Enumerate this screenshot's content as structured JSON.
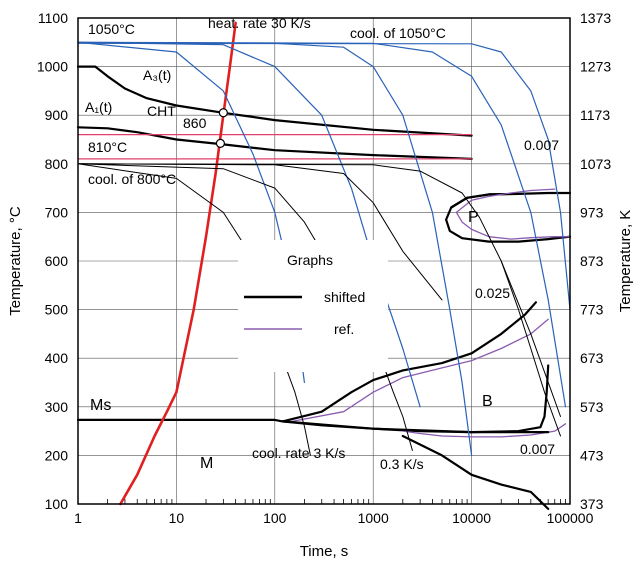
{
  "chart_data": {
    "type": "line",
    "xlabel": "Time, s",
    "ylabel": "Temperature, °C",
    "ylabel_right": "Temperature, K",
    "x_scale": "log",
    "xlim": [
      1,
      100000
    ],
    "ylim": [
      100,
      1100
    ],
    "x_ticks": [
      "1",
      "10",
      "100",
      "1000",
      "10000",
      "100000"
    ],
    "y_ticks": [
      "100",
      "200",
      "300",
      "400",
      "500",
      "600",
      "700",
      "800",
      "900",
      "1000",
      "1100"
    ],
    "y_ticks_right": [
      "373",
      "473",
      "573",
      "673",
      "773",
      "873",
      "973",
      "1073",
      "1173",
      "1273",
      "1373"
    ],
    "grid": true,
    "legend": {
      "title": "Graphs",
      "placement": "center",
      "entries": [
        {
          "label": "shifted",
          "color": "#000000"
        },
        {
          "label": "ref.",
          "color": "#8a5bb0"
        }
      ]
    },
    "colors": {
      "shifted": "#000000",
      "ref": "#8a5bb0",
      "cooling": "#2a62b8",
      "heating": "#e02020",
      "cht": "#e0406a",
      "thin": "#000000"
    },
    "annotations": {
      "cool_1050": "1050°C",
      "cool_of_1050": "cool. of 1050°C",
      "heat_rate": "heat. rate 30 K/s",
      "a3": "A₃(t)",
      "a1": "A₁(t)",
      "cht": "CHT",
      "temp_860": "860",
      "temp_810": "810°C",
      "cool_of_800": "cool. of 800°C",
      "rate_0007_top": "0.007",
      "rate_0025": "0.025",
      "rate_0007_bottom": "0.007",
      "phase_P": "P",
      "phase_B": "B",
      "phase_M": "M",
      "ms": "Ms",
      "cool_rate_3": "cool. rate 3 K/s",
      "rate_03": "0.3 K/s"
    },
    "series": [
      {
        "name": "shifted",
        "role": "A3(t)",
        "style": "shifted",
        "x": [
          1,
          1.5,
          2,
          3,
          5,
          10,
          30,
          100,
          1000,
          10000
        ],
        "y": [
          1000,
          1000,
          980,
          955,
          935,
          920,
          905,
          890,
          870,
          858
        ]
      },
      {
        "name": "shifted",
        "role": "A1(t)",
        "style": "shifted",
        "x": [
          1,
          2,
          4,
          10,
          30,
          100,
          1000,
          10000
        ],
        "y": [
          875,
          873,
          865,
          850,
          840,
          828,
          818,
          810
        ]
      },
      {
        "name": "shifted",
        "role": "pearlite",
        "style": "shifted",
        "x": [
          30000,
          15000,
          9000,
          6200,
          5500,
          6000,
          8000,
          15000,
          30000,
          60000,
          100000
        ],
        "y": [
          738,
          737,
          730,
          710,
          685,
          662,
          647,
          640,
          640,
          645,
          650
        ]
      },
      {
        "name": "shifted",
        "role": "pearlite-nose",
        "style": "shifted",
        "x": [
          9000,
          6200
        ],
        "y": [
          730,
          710
        ]
      },
      {
        "name": "shifted",
        "role": "pearlite-top",
        "style": "shifted",
        "x": [
          9000,
          15000,
          30000,
          60000,
          100000
        ],
        "y": [
          730,
          737,
          738,
          740,
          740
        ]
      },
      {
        "name": "shifted",
        "role": "bainite-start",
        "style": "shifted",
        "x": [
          120,
          300,
          600,
          1000,
          2000,
          5000,
          10000,
          20000,
          35000,
          45000
        ],
        "y": [
          270,
          290,
          330,
          355,
          375,
          390,
          410,
          450,
          490,
          515
        ]
      },
      {
        "name": "shifted",
        "role": "bainite-end",
        "style": "shifted",
        "x": [
          120,
          300,
          1000,
          3000,
          10000,
          30000,
          50000,
          55000,
          58000,
          60000
        ],
        "y": [
          270,
          262,
          255,
          250,
          248,
          250,
          258,
          280,
          330,
          385
        ]
      },
      {
        "name": "ref.",
        "role": "pearlite-ref",
        "style": "ref",
        "x": [
          7000,
          8000,
          10000,
          15000,
          25000,
          40000,
          70000,
          100000
        ],
        "y": [
          700,
          680,
          665,
          650,
          645,
          648,
          650,
          650
        ]
      },
      {
        "name": "ref.",
        "role": "pearlite-ref-top",
        "style": "ref",
        "x": [
          7000,
          10000,
          15000,
          25000,
          40000,
          70000
        ],
        "y": [
          700,
          725,
          733,
          740,
          745,
          748
        ]
      },
      {
        "name": "ref.",
        "role": "bainite-ref-start",
        "style": "ref",
        "x": [
          150,
          500,
          1000,
          2000,
          5000,
          10000,
          20000,
          40000,
          60000
        ],
        "y": [
          270,
          290,
          330,
          360,
          380,
          395,
          420,
          450,
          480
        ]
      },
      {
        "name": "ref.",
        "role": "bainite-ref-end",
        "style": "ref",
        "x": [
          2000,
          3000,
          5000,
          10000,
          20000,
          40000,
          70000,
          90000
        ],
        "y": [
          250,
          245,
          240,
          238,
          238,
          242,
          250,
          265
        ]
      },
      {
        "name": "Ms",
        "style": "shifted",
        "x": [
          1,
          10,
          100,
          120,
          1000,
          10000,
          60000
        ],
        "y": [
          273,
          273,
          273,
          270,
          255,
          248,
          248
        ]
      },
      {
        "name": "cht-860",
        "style": "cht",
        "x": [
          1,
          10000
        ],
        "y": [
          860,
          860
        ]
      },
      {
        "name": "cht-810",
        "style": "cht",
        "x": [
          1,
          10000
        ],
        "y": [
          810,
          810
        ]
      },
      {
        "name": "heat. rate 30 K/s",
        "style": "heating",
        "x": [
          2.7,
          4,
          6,
          8,
          10,
          15,
          20,
          25,
          30,
          35,
          40
        ],
        "y": [
          100,
          160,
          240,
          290,
          330,
          500,
          650,
          780,
          900,
          1000,
          1090
        ]
      },
      {
        "name": "cool-1050-a",
        "style": "cooling",
        "x": [
          1,
          10,
          30,
          60,
          100,
          150,
          200
        ],
        "y": [
          1050,
          1030,
          950,
          820,
          700,
          550,
          350
        ]
      },
      {
        "name": "cool-1050-b",
        "style": "cooling",
        "x": [
          1,
          30,
          100,
          300,
          600,
          1000,
          2000,
          3000
        ],
        "y": [
          1050,
          1045,
          1000,
          900,
          750,
          600,
          420,
          300
        ]
      },
      {
        "name": "cool-1050-c",
        "style": "cooling",
        "x": [
          1,
          100,
          500,
          1000,
          2000,
          4000,
          6000,
          8000,
          10000
        ],
        "y": [
          1050,
          1048,
          1040,
          1000,
          900,
          700,
          500,
          350,
          200
        ]
      },
      {
        "name": "cool-1050-d",
        "style": "cooling",
        "x": [
          1,
          1000,
          4000,
          10000,
          20000,
          40000,
          60000,
          90000
        ],
        "y": [
          1050,
          1048,
          1030,
          980,
          880,
          700,
          520,
          300
        ]
      },
      {
        "name": "cool-1050-e",
        "style": "cooling",
        "x": [
          1,
          10000,
          20000,
          40000,
          60000,
          80000,
          100000
        ],
        "y": [
          1048,
          1047,
          1030,
          950,
          850,
          700,
          500
        ]
      },
      {
        "name": "cool-800-a",
        "style": "thin",
        "x": [
          1,
          10,
          30,
          50,
          70,
          100
        ],
        "y": [
          800,
          770,
          700,
          630,
          580,
          520
        ]
      },
      {
        "name": "cool-800-b",
        "style": "thin",
        "x": [
          1,
          30,
          100,
          200,
          300,
          500
        ],
        "y": [
          800,
          790,
          750,
          680,
          620,
          560
        ]
      },
      {
        "name": "cool-800-c",
        "style": "thin",
        "x": [
          1,
          100,
          500,
          1000,
          2000,
          5000
        ],
        "y": [
          800,
          798,
          780,
          720,
          620,
          520
        ]
      },
      {
        "name": "cool-800-d",
        "style": "thin",
        "x": [
          1,
          1000,
          3000,
          8000,
          12000,
          20000,
          40000,
          80000
        ],
        "y": [
          800,
          798,
          785,
          740,
          690,
          600,
          450,
          280
        ]
      },
      {
        "name": "cool-rate-3",
        "style": "thin",
        "x": [
          100,
          130,
          160,
          200,
          230
        ],
        "y": [
          430,
          380,
          330,
          260,
          200
        ]
      },
      {
        "name": "cool-rate-0.3",
        "style": "thin",
        "x": [
          1000,
          1300,
          1600,
          2000,
          2500
        ],
        "y": [
          430,
          380,
          330,
          280,
          210
        ]
      },
      {
        "name": "cool-rate-0.007",
        "style": "thin",
        "x": [
          20000,
          30000,
          40000,
          55000,
          80000
        ],
        "y": [
          600,
          500,
          420,
          330,
          240
        ]
      },
      {
        "name": "ferrite-tail",
        "style": "shifted",
        "x": [
          2000,
          5000,
          10000,
          20000,
          40000,
          60000
        ],
        "y": [
          240,
          200,
          160,
          140,
          125,
          90
        ]
      }
    ],
    "markers": [
      {
        "x": 30,
        "y": 905
      },
      {
        "x": 28,
        "y": 842
      }
    ]
  }
}
